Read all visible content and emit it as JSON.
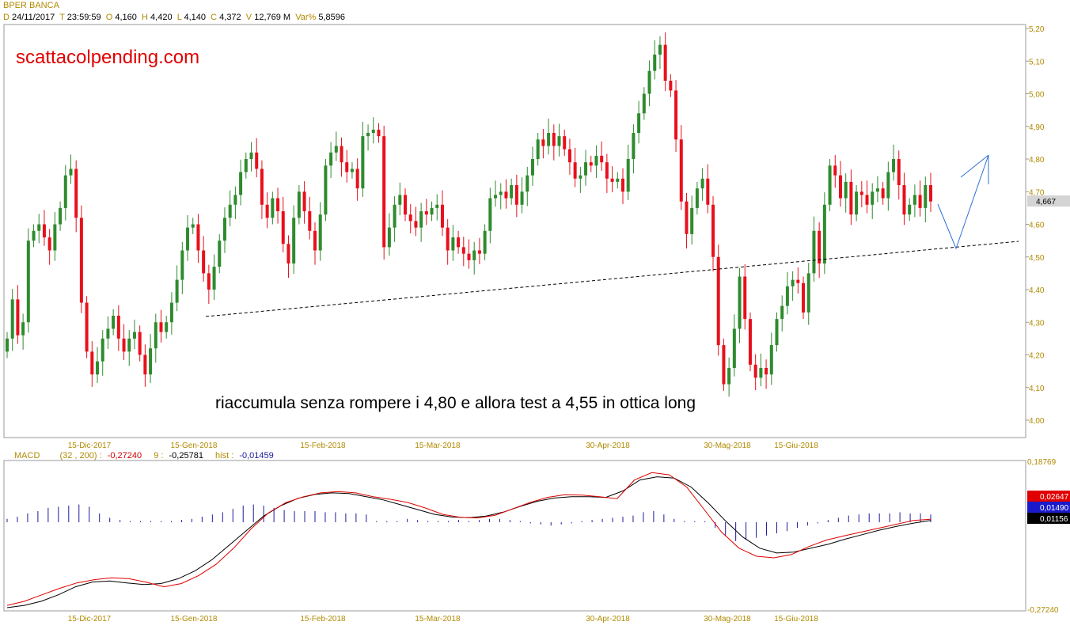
{
  "header": {
    "title": "BPER BANCA",
    "d_key": "D",
    "date": "24/11/2017",
    "t_key": "T",
    "time": "23:59:59",
    "o_key": "O",
    "open": "4,160",
    "h_key": "H",
    "high": "4,420",
    "l_key": "L",
    "low": "4,140",
    "c_key": "C",
    "close": "4,372",
    "v_key": "V",
    "volume": "12,769 M",
    "var_key": "Var%",
    "var": "5,8596"
  },
  "watermark": "scattacolpending.com",
  "annotation": "riaccumula senza rompere i 4,80 e allora test a 4,55 in ottica long",
  "macd_label": {
    "name": "MACD",
    "params": "(32 , 200) :",
    "macd": "-0,27240",
    "signal_key": "9 :",
    "signal": "-0,25781",
    "hist_key": "hist :",
    "hist": "-0,01459"
  },
  "colors": {
    "up": "#2e8b2e",
    "down": "#e8101c",
    "axis": "#b08a00",
    "macd": "#000000",
    "signal": "#e00000",
    "hist": "#1a1aa0"
  },
  "chart_data": [
    {
      "type": "candlestick",
      "title": "BPER BANCA",
      "x_ticks": [
        "15-Dic-2017",
        "15-Gen-2018",
        "15-Feb-2018",
        "15-Mar-2018",
        "30-Apr-2018",
        "30-Mag-2018",
        "15-Giu-2018"
      ],
      "y_ticks": [
        "4,00",
        "4,10",
        "4,20",
        "4,30",
        "4,40",
        "4,50",
        "4,60",
        "4,70",
        "4,80",
        "4,90",
        "5,00",
        "5,10",
        "5,20"
      ],
      "ylim": [
        3.98,
        5.21
      ],
      "last_price": "4,667",
      "close": [
        4.25,
        4.37,
        4.26,
        4.3,
        4.55,
        4.58,
        4.6,
        4.56,
        4.52,
        4.6,
        4.65,
        4.75,
        4.77,
        4.62,
        4.36,
        4.21,
        4.14,
        4.18,
        4.25,
        4.28,
        4.32,
        4.25,
        4.21,
        4.25,
        4.27,
        4.2,
        4.14,
        4.22,
        4.3,
        4.27,
        4.3,
        4.36,
        4.43,
        4.52,
        4.59,
        4.6,
        4.52,
        4.45,
        4.4,
        4.47,
        4.55,
        4.62,
        4.66,
        4.69,
        4.76,
        4.8,
        4.82,
        4.77,
        4.66,
        4.62,
        4.68,
        4.64,
        4.54,
        4.48,
        4.62,
        4.7,
        4.64,
        4.58,
        4.52,
        4.63,
        4.78,
        4.82,
        4.84,
        4.79,
        4.76,
        4.77,
        4.71,
        4.87,
        4.88,
        4.89,
        4.87,
        4.53,
        4.59,
        4.66,
        4.69,
        4.63,
        4.61,
        4.59,
        4.64,
        4.63,
        4.65,
        4.66,
        4.59,
        4.52,
        4.56,
        4.53,
        4.51,
        4.49,
        4.52,
        4.51,
        4.58,
        4.68,
        4.69,
        4.7,
        4.68,
        4.72,
        4.66,
        4.7,
        4.75,
        4.8,
        4.86,
        4.84,
        4.88,
        4.84,
        4.87,
        4.83,
        4.79,
        4.74,
        4.75,
        4.79,
        4.78,
        4.81,
        4.79,
        4.74,
        4.73,
        4.74,
        4.7,
        4.8,
        4.88,
        4.94,
        5.0,
        5.07,
        5.12,
        5.15,
        5.04,
        5.01,
        4.86,
        4.67,
        4.57,
        4.65,
        4.71,
        4.74,
        4.66,
        4.5,
        4.23,
        4.11,
        4.16,
        4.28,
        4.44,
        4.31,
        4.17,
        4.13,
        4.16,
        4.14,
        4.23,
        4.31,
        4.35,
        4.41,
        4.43,
        4.42,
        4.33,
        4.45,
        4.58,
        4.48,
        4.66,
        4.78,
        4.75,
        4.68,
        4.73,
        4.63,
        4.7,
        4.69,
        4.66,
        4.7,
        4.71,
        4.68,
        4.76,
        4.8,
        4.72,
        4.63,
        4.66,
        4.69,
        4.65,
        4.72,
        4.67
      ]
    },
    {
      "type": "line",
      "title": "MACD (32 , 200)",
      "y_ticks": [
        "0,18769",
        "-0,27240"
      ],
      "ylim": [
        -0.2724,
        0.18769
      ],
      "series": [
        {
          "name": "MACD",
          "values": [
            -0.258,
            -0.245,
            -0.225,
            -0.205,
            -0.188,
            -0.178,
            -0.172,
            -0.175,
            -0.186,
            -0.2,
            -0.19,
            -0.165,
            -0.13,
            -0.08,
            -0.02,
            0.03,
            0.062,
            0.08,
            0.092,
            0.096,
            0.092,
            0.08,
            0.072,
            0.062,
            0.045,
            0.025,
            0.016,
            0.014,
            0.022,
            0.042,
            0.062,
            0.078,
            0.086,
            0.085,
            0.08,
            0.074,
            0.132,
            0.155,
            0.148,
            0.11,
            0.04,
            -0.03,
            -0.08,
            -0.105,
            -0.11,
            -0.1,
            -0.075,
            -0.055,
            -0.042,
            -0.03,
            -0.018,
            -0.006,
            0.006,
            0.01
          ]
        },
        {
          "name": "9",
          "values": [
            -0.265,
            -0.258,
            -0.245,
            -0.225,
            -0.2,
            -0.185,
            -0.182,
            -0.188,
            -0.193,
            -0.19,
            -0.175,
            -0.15,
            -0.115,
            -0.07,
            -0.025,
            0.02,
            0.052,
            0.075,
            0.087,
            0.092,
            0.09,
            0.08,
            0.07,
            0.055,
            0.04,
            0.025,
            0.017,
            0.015,
            0.02,
            0.032,
            0.05,
            0.066,
            0.076,
            0.08,
            0.08,
            0.078,
            0.098,
            0.132,
            0.142,
            0.138,
            0.11,
            0.06,
            0.005,
            -0.045,
            -0.08,
            -0.095,
            -0.092,
            -0.08,
            -0.068,
            -0.052,
            -0.038,
            -0.024,
            -0.012,
            -0.002,
            0.006
          ]
        },
        {
          "name": "hist",
          "values": [
            0.006,
            0.01,
            0.016,
            0.02,
            0.026,
            0.028,
            0.03,
            0.032,
            0.028,
            0.016,
            0.008,
            0.004,
            0.002,
            0.002,
            0.002,
            0.002,
            0.002,
            0.004,
            0.006,
            0.01,
            0.014,
            0.018,
            0.024,
            0.03,
            0.032,
            0.03,
            0.026,
            0.022,
            0.02,
            0.02,
            0.02,
            0.018,
            0.018,
            0.016,
            0.016,
            0.014,
            0.002,
            0.002,
            0.002,
            0.006,
            0.004,
            0.002,
            0.002,
            0.002,
            0.004,
            0.002,
            0.004,
            0.006,
            0.006,
            0.004,
            0.002,
            -0.002,
            -0.004,
            -0.006,
            -0.004,
            -0.002,
            0.002,
            0.004,
            0.006,
            0.008,
            0.01,
            0.012,
            0.018,
            0.02,
            0.014,
            0.006,
            0.002,
            0.002,
            0.002,
            -0.01,
            -0.024,
            -0.034,
            -0.032,
            -0.028,
            -0.024,
            -0.02,
            -0.016,
            -0.01,
            -0.006,
            -0.002,
            0.004,
            0.008,
            0.012,
            0.014,
            0.016,
            0.016,
            0.016,
            0.018,
            0.016,
            0.016,
            0.014
          ]
        }
      ],
      "last_values": [
        "0,02647",
        "0,01490",
        "0,01156"
      ]
    }
  ]
}
